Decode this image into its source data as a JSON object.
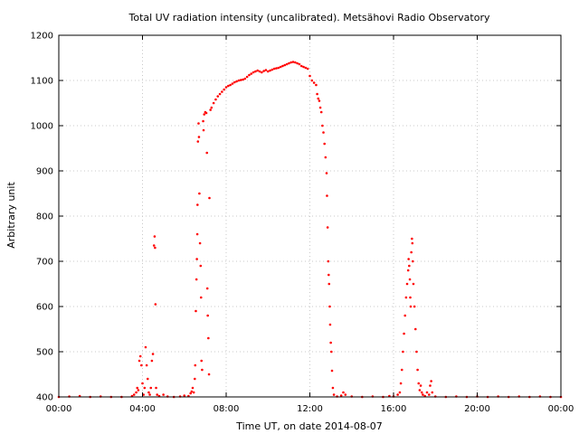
{
  "chart_data": {
    "type": "scatter",
    "title": "Total UV radiation intensity (uncalibrated). Metsähovi Radio Observatory",
    "xlabel": "Time UT, on date 2014-08-07",
    "ylabel": "Arbitrary unit",
    "xlim": [
      0,
      24
    ],
    "ylim": [
      400,
      1200
    ],
    "x_ticks": [
      0,
      4,
      8,
      12,
      16,
      20,
      24
    ],
    "x_tick_labels": [
      "00:00",
      "04:00",
      "08:00",
      "12:00",
      "16:00",
      "20:00",
      "00:00"
    ],
    "y_ticks": [
      400,
      500,
      600,
      700,
      800,
      900,
      1000,
      1100,
      1200
    ],
    "y_tick_labels": [
      "400",
      "500",
      "600",
      "700",
      "800",
      "900",
      "1000",
      "1100",
      "1200"
    ],
    "grid": true,
    "legend": "none",
    "marker_color": "#ff0000",
    "series": [
      {
        "points": [
          [
            0.0,
            400
          ],
          [
            0.5,
            401
          ],
          [
            1.0,
            402
          ],
          [
            1.5,
            400
          ],
          [
            2.0,
            401
          ],
          [
            2.5,
            400
          ],
          [
            3.0,
            400
          ],
          [
            3.5,
            402
          ],
          [
            3.6,
            405
          ],
          [
            3.7,
            410
          ],
          [
            3.75,
            420
          ],
          [
            3.8,
            415
          ],
          [
            3.85,
            480
          ],
          [
            3.9,
            490
          ],
          [
            3.95,
            470
          ],
          [
            4.0,
            430
          ],
          [
            4.05,
            405
          ],
          [
            4.1,
            420
          ],
          [
            4.15,
            510
          ],
          [
            4.2,
            470
          ],
          [
            4.25,
            440
          ],
          [
            4.3,
            410
          ],
          [
            4.35,
            405
          ],
          [
            4.4,
            420
          ],
          [
            4.45,
            480
          ],
          [
            4.5,
            495
          ],
          [
            4.55,
            735
          ],
          [
            4.58,
            755
          ],
          [
            4.6,
            730
          ],
          [
            4.62,
            605
          ],
          [
            4.65,
            420
          ],
          [
            4.7,
            405
          ],
          [
            4.8,
            402
          ],
          [
            5.0,
            405
          ],
          [
            5.2,
            401
          ],
          [
            5.5,
            400
          ],
          [
            5.8,
            401
          ],
          [
            6.0,
            403
          ],
          [
            6.2,
            402
          ],
          [
            6.3,
            408
          ],
          [
            6.35,
            412
          ],
          [
            6.4,
            420
          ],
          [
            6.45,
            410
          ],
          [
            6.5,
            440
          ],
          [
            6.52,
            470
          ],
          [
            6.55,
            590
          ],
          [
            6.58,
            660
          ],
          [
            6.6,
            705
          ],
          [
            6.62,
            760
          ],
          [
            6.63,
            825
          ],
          [
            6.65,
            965
          ],
          [
            6.68,
            1005
          ],
          [
            6.7,
            975
          ],
          [
            6.72,
            850
          ],
          [
            6.75,
            740
          ],
          [
            6.78,
            690
          ],
          [
            6.8,
            620
          ],
          [
            6.82,
            480
          ],
          [
            6.85,
            460
          ],
          [
            6.9,
            1010
          ],
          [
            6.92,
            990
          ],
          [
            6.95,
            1025
          ],
          [
            7.0,
            1030
          ],
          [
            7.05,
            1028
          ],
          [
            7.08,
            940
          ],
          [
            7.1,
            640
          ],
          [
            7.12,
            580
          ],
          [
            7.15,
            530
          ],
          [
            7.18,
            450
          ],
          [
            7.2,
            840
          ],
          [
            7.25,
            1035
          ],
          [
            7.3,
            1040
          ],
          [
            7.4,
            1050
          ],
          [
            7.5,
            1058
          ],
          [
            7.6,
            1065
          ],
          [
            7.7,
            1070
          ],
          [
            7.8,
            1075
          ],
          [
            7.9,
            1080
          ],
          [
            8.0,
            1085
          ],
          [
            8.1,
            1088
          ],
          [
            8.2,
            1090
          ],
          [
            8.3,
            1093
          ],
          [
            8.4,
            1096
          ],
          [
            8.5,
            1098
          ],
          [
            8.6,
            1100
          ],
          [
            8.7,
            1101
          ],
          [
            8.8,
            1102
          ],
          [
            8.9,
            1104
          ],
          [
            9.0,
            1108
          ],
          [
            9.1,
            1112
          ],
          [
            9.2,
            1115
          ],
          [
            9.3,
            1118
          ],
          [
            9.4,
            1120
          ],
          [
            9.5,
            1122
          ],
          [
            9.6,
            1120
          ],
          [
            9.7,
            1118
          ],
          [
            9.8,
            1121
          ],
          [
            9.9,
            1123
          ],
          [
            10.0,
            1120
          ],
          [
            10.1,
            1122
          ],
          [
            10.2,
            1124
          ],
          [
            10.3,
            1126
          ],
          [
            10.4,
            1127
          ],
          [
            10.5,
            1128
          ],
          [
            10.6,
            1130
          ],
          [
            10.7,
            1132
          ],
          [
            10.8,
            1134
          ],
          [
            10.9,
            1136
          ],
          [
            11.0,
            1138
          ],
          [
            11.1,
            1140
          ],
          [
            11.2,
            1141
          ],
          [
            11.3,
            1140
          ],
          [
            11.4,
            1138
          ],
          [
            11.5,
            1136
          ],
          [
            11.6,
            1132
          ],
          [
            11.7,
            1130
          ],
          [
            11.8,
            1128
          ],
          [
            11.9,
            1126
          ],
          [
            12.0,
            1110
          ],
          [
            12.1,
            1100
          ],
          [
            12.2,
            1095
          ],
          [
            12.3,
            1090
          ],
          [
            12.35,
            1070
          ],
          [
            12.4,
            1060
          ],
          [
            12.45,
            1055
          ],
          [
            12.5,
            1040
          ],
          [
            12.55,
            1030
          ],
          [
            12.6,
            1000
          ],
          [
            12.65,
            985
          ],
          [
            12.7,
            960
          ],
          [
            12.75,
            930
          ],
          [
            12.8,
            895
          ],
          [
            12.82,
            845
          ],
          [
            12.85,
            775
          ],
          [
            12.88,
            700
          ],
          [
            12.9,
            670
          ],
          [
            12.92,
            650
          ],
          [
            12.95,
            600
          ],
          [
            12.97,
            560
          ],
          [
            13.0,
            520
          ],
          [
            13.03,
            500
          ],
          [
            13.06,
            458
          ],
          [
            13.1,
            420
          ],
          [
            13.15,
            405
          ],
          [
            13.3,
            401
          ],
          [
            13.5,
            403
          ],
          [
            13.6,
            410
          ],
          [
            13.7,
            405
          ],
          [
            14.0,
            401
          ],
          [
            14.5,
            400
          ],
          [
            15.0,
            401
          ],
          [
            15.5,
            400
          ],
          [
            15.8,
            402
          ],
          [
            16.0,
            401
          ],
          [
            16.2,
            405
          ],
          [
            16.3,
            410
          ],
          [
            16.35,
            430
          ],
          [
            16.4,
            460
          ],
          [
            16.45,
            500
          ],
          [
            16.5,
            540
          ],
          [
            16.55,
            580
          ],
          [
            16.6,
            620
          ],
          [
            16.65,
            650
          ],
          [
            16.7,
            680
          ],
          [
            16.72,
            705
          ],
          [
            16.75,
            690
          ],
          [
            16.78,
            660
          ],
          [
            16.8,
            620
          ],
          [
            16.82,
            600
          ],
          [
            16.85,
            720
          ],
          [
            16.88,
            750
          ],
          [
            16.9,
            740
          ],
          [
            16.92,
            700
          ],
          [
            16.95,
            650
          ],
          [
            17.0,
            600
          ],
          [
            17.05,
            550
          ],
          [
            17.1,
            500
          ],
          [
            17.15,
            460
          ],
          [
            17.2,
            430
          ],
          [
            17.25,
            415
          ],
          [
            17.3,
            425
          ],
          [
            17.35,
            410
          ],
          [
            17.4,
            405
          ],
          [
            17.5,
            402
          ],
          [
            17.6,
            410
          ],
          [
            17.7,
            405
          ],
          [
            17.75,
            425
          ],
          [
            17.8,
            435
          ],
          [
            17.85,
            410
          ],
          [
            18.0,
            401
          ],
          [
            18.5,
            400
          ],
          [
            19.0,
            401
          ],
          [
            19.5,
            400
          ],
          [
            20.0,
            401
          ],
          [
            20.5,
            400
          ],
          [
            21.0,
            401
          ],
          [
            21.5,
            400
          ],
          [
            22.0,
            401
          ],
          [
            22.5,
            400
          ],
          [
            23.0,
            401
          ],
          [
            23.5,
            400
          ],
          [
            24.0,
            400
          ]
        ]
      }
    ]
  }
}
